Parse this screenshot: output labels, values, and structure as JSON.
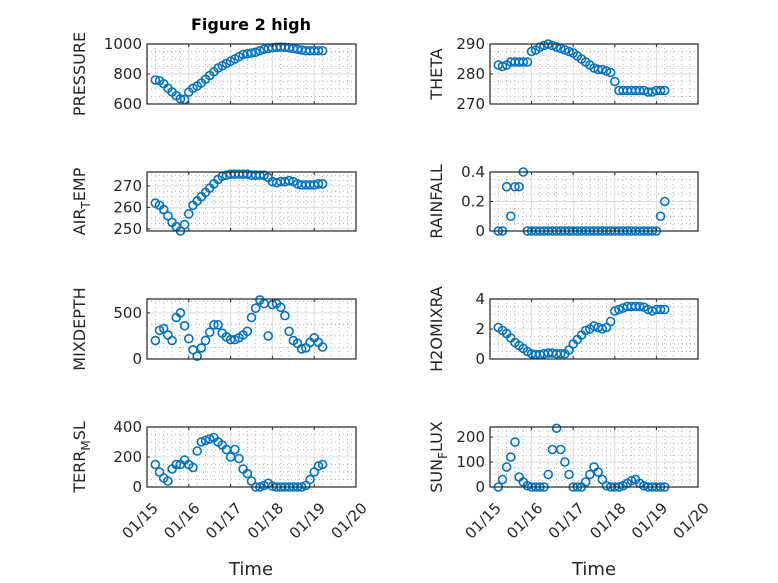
{
  "figure": {
    "title": "Figure 2 high",
    "xlabel": "Time",
    "marker_color": "#0072BD",
    "x_tick_labels": [
      "01/15",
      "01/16",
      "01/17",
      "01/18",
      "01/19",
      "01/20"
    ],
    "x_tick_values_days": [
      0,
      1,
      2,
      3,
      4,
      5
    ],
    "xlim_days": [
      0,
      5
    ]
  },
  "chart_data": [
    {
      "type": "scatter",
      "id": "pressure",
      "ylabel_parts": [
        "PRESSURE"
      ],
      "ylim": [
        600,
        1000
      ],
      "yticks": [
        600,
        800,
        1000
      ],
      "ytick_labels": [
        "600",
        "800",
        "1000"
      ],
      "y": [
        760,
        755,
        735,
        705,
        680,
        655,
        635,
        630,
        680,
        705,
        720,
        740,
        765,
        790,
        815,
        840,
        855,
        870,
        885,
        900,
        915,
        930,
        935,
        940,
        945,
        955,
        965,
        970,
        975,
        978,
        980,
        978,
        975,
        970,
        965,
        960,
        955,
        955,
        955,
        955,
        955
      ]
    },
    {
      "type": "scatter",
      "id": "theta",
      "ylabel_parts": [
        "THETA"
      ],
      "ylim": [
        270,
        290
      ],
      "yticks": [
        270,
        280,
        290
      ],
      "ytick_labels": [
        "270",
        "280",
        "290"
      ],
      "y": [
        283,
        282.5,
        283,
        284,
        284,
        284,
        284,
        284,
        287.5,
        288,
        289,
        289.5,
        290,
        289.5,
        289,
        288.5,
        288,
        287.5,
        287,
        286,
        285,
        284,
        283,
        282,
        281.5,
        281.5,
        281,
        280.5,
        277.5,
        274.5,
        274.5,
        274.5,
        274.5,
        274.5,
        274.5,
        274.5,
        274,
        274,
        274.5,
        274.5,
        274.5
      ]
    },
    {
      "type": "scatter",
      "id": "air_temp",
      "ylabel_parts": [
        "AIR",
        "T",
        "EMP"
      ],
      "ylim": [
        249,
        276.5
      ],
      "yticks": [
        250,
        260,
        270
      ],
      "ytick_labels": [
        "250",
        "260",
        "270"
      ],
      "y": [
        262,
        261,
        259,
        256,
        253,
        251,
        249,
        252,
        257,
        261,
        263,
        265,
        267,
        269,
        271,
        273,
        274.5,
        275,
        275.5,
        275.5,
        275.5,
        275.5,
        275.5,
        275,
        275,
        275,
        275,
        274,
        272,
        271.5,
        272,
        272,
        272.5,
        272,
        271,
        270.5,
        270.5,
        270.5,
        270.5,
        271,
        271
      ]
    },
    {
      "type": "scatter",
      "id": "rainfall",
      "ylabel_parts": [
        "RAINFALL"
      ],
      "ylim": [
        0,
        0.4
      ],
      "yticks": [
        0,
        0.2,
        0.4
      ],
      "ytick_labels": [
        "0",
        "0.2",
        "0.4"
      ],
      "y": [
        0,
        0,
        0.3,
        0.1,
        0.3,
        0.3,
        0.4,
        0,
        0,
        0,
        0,
        0,
        0,
        0,
        0,
        0,
        0,
        0,
        0,
        0,
        0,
        0,
        0,
        0,
        0,
        0,
        0,
        0,
        0,
        0,
        0,
        0,
        0,
        0,
        0,
        0,
        0,
        0,
        0,
        0.1,
        0.2
      ]
    },
    {
      "type": "scatter",
      "id": "mixdepth",
      "ylabel_parts": [
        "MIXDEPTH"
      ],
      "ylim": [
        0,
        650
      ],
      "yticks": [
        0,
        500
      ],
      "ytick_labels": [
        "0",
        "500"
      ],
      "y": [
        200,
        310,
        330,
        260,
        200,
        450,
        500,
        360,
        220,
        100,
        30,
        120,
        200,
        290,
        370,
        370,
        280,
        240,
        210,
        210,
        230,
        260,
        300,
        450,
        550,
        640,
        600,
        250,
        590,
        600,
        560,
        470,
        300,
        200,
        170,
        110,
        120,
        180,
        230,
        180,
        130
      ]
    },
    {
      "type": "scatter",
      "id": "h2omixra",
      "ylabel_parts": [
        "H2OMIXRA"
      ],
      "ylim": [
        0,
        4
      ],
      "yticks": [
        0,
        2,
        4
      ],
      "ytick_labels": [
        "0",
        "2",
        "4"
      ],
      "y": [
        2.1,
        1.9,
        1.7,
        1.4,
        1.1,
        0.9,
        0.7,
        0.5,
        0.35,
        0.3,
        0.3,
        0.35,
        0.4,
        0.4,
        0.35,
        0.35,
        0.35,
        0.6,
        1.0,
        1.3,
        1.6,
        1.9,
        2.0,
        2.2,
        2.1,
        2.0,
        2.1,
        2.5,
        3.2,
        3.3,
        3.4,
        3.5,
        3.5,
        3.5,
        3.5,
        3.45,
        3.3,
        3.2,
        3.3,
        3.3,
        3.3
      ]
    },
    {
      "type": "scatter",
      "id": "terr_msl",
      "ylabel_parts": [
        "TERR",
        "M",
        "SL"
      ],
      "ylim": [
        0,
        400
      ],
      "yticks": [
        0,
        200,
        400
      ],
      "ytick_labels": [
        "0",
        "200",
        "400"
      ],
      "y": [
        150,
        100,
        60,
        40,
        120,
        150,
        150,
        180,
        150,
        130,
        240,
        300,
        310,
        320,
        330,
        300,
        280,
        250,
        200,
        250,
        190,
        120,
        90,
        40,
        0,
        0,
        10,
        25,
        5,
        0,
        0,
        0,
        0,
        0,
        0,
        0,
        10,
        50,
        100,
        140,
        150
      ]
    },
    {
      "type": "scatter",
      "id": "sun_flux",
      "ylabel_parts": [
        "SUN",
        "F",
        "LUX"
      ],
      "ylim": [
        0,
        240
      ],
      "yticks": [
        0,
        100,
        200
      ],
      "ytick_labels": [
        "0",
        "100",
        "200"
      ],
      "y": [
        0,
        30,
        80,
        120,
        180,
        40,
        20,
        5,
        0,
        0,
        0,
        0,
        50,
        150,
        235,
        150,
        100,
        50,
        0,
        0,
        0,
        20,
        50,
        80,
        60,
        30,
        5,
        0,
        0,
        0,
        5,
        15,
        25,
        30,
        15,
        5,
        0,
        0,
        0,
        0,
        0
      ]
    }
  ],
  "x_days": [
    0.2,
    0.3,
    0.4,
    0.5,
    0.6,
    0.7,
    0.8,
    0.9,
    1.0,
    1.1,
    1.2,
    1.3,
    1.4,
    1.5,
    1.6,
    1.7,
    1.8,
    1.9,
    2.0,
    2.1,
    2.2,
    2.3,
    2.4,
    2.5,
    2.6,
    2.7,
    2.8,
    2.9,
    3.0,
    3.1,
    3.2,
    3.3,
    3.4,
    3.5,
    3.6,
    3.7,
    3.8,
    3.9,
    4.0,
    4.1,
    4.2
  ]
}
